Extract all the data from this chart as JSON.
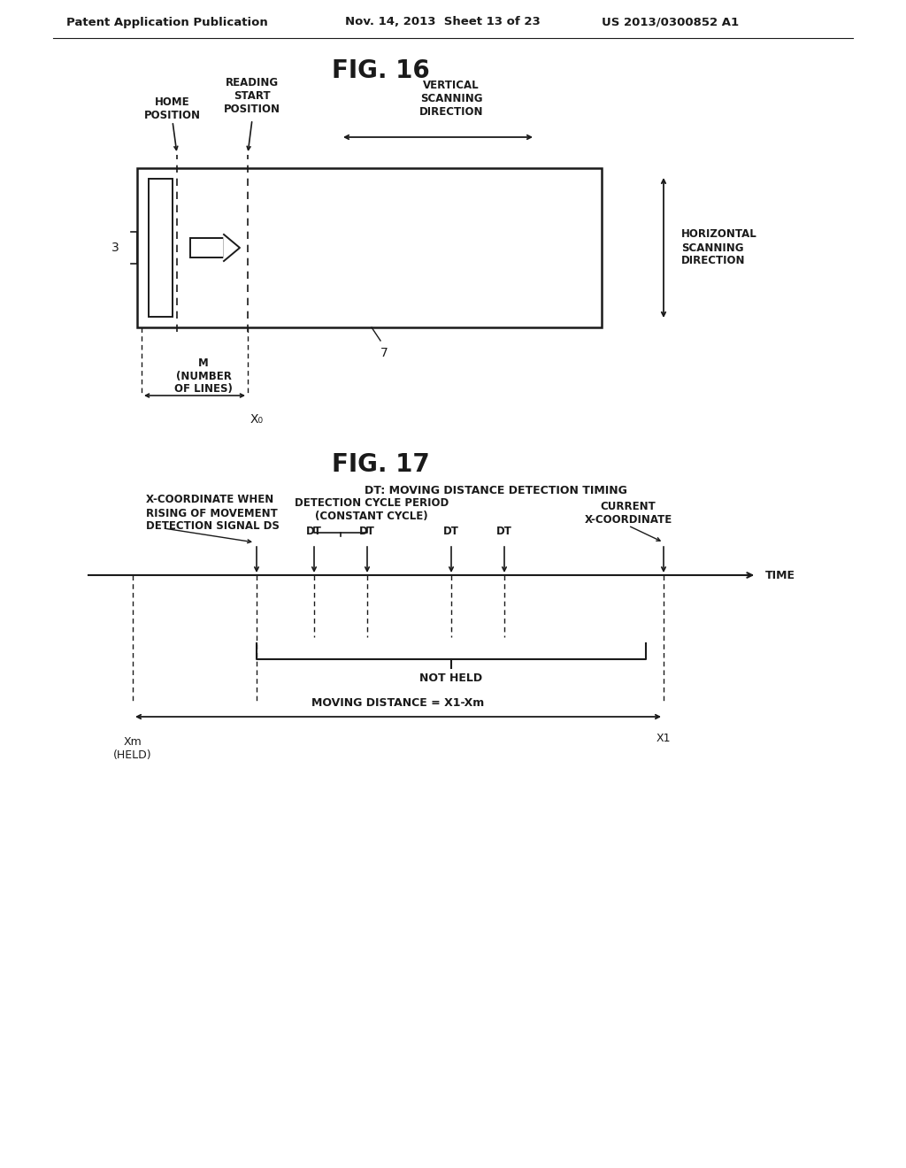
{
  "bg_color": "#ffffff",
  "text_color": "#1a1a1a",
  "header_left": "Patent Application Publication",
  "header_mid": "Nov. 14, 2013  Sheet 13 of 23",
  "header_right": "US 2013/0300852 A1",
  "fig16_title": "FIG. 16",
  "fig17_title": "FIG. 17",
  "fig16_labels": {
    "home_position": "HOME\nPOSITION",
    "reading_start": "READING\nSTART\nPOSITION",
    "vertical_scanning": "VERTICAL\nSCANNING\nDIRECTION",
    "horizontal_scanning": "HORIZONTAL\nSCANNING\nDIRECTION",
    "m_label": "M\n(NUMBER\nOF LINES)",
    "x0_label": "X₀",
    "label_3": "3",
    "label_7": "7"
  },
  "fig17_labels": {
    "dt_subtitle": "DT: MOVING DISTANCE DETECTION TIMING",
    "x_coord_when": "X-COORDINATE WHEN\nRISING OF MOVEMENT\nDETECTION SIGNAL DS",
    "current_x": "CURRENT\nX-COORDINATE",
    "detection_cycle": "DETECTION CYCLE PERIOD\n(CONSTANT CYCLE)",
    "time_label": "TIME",
    "not_held": "NOT HELD",
    "moving_distance": "MOVING DISTANCE = X1-Xm",
    "xm_label": "Xm\n(HELD)",
    "x1_label": "X1"
  }
}
